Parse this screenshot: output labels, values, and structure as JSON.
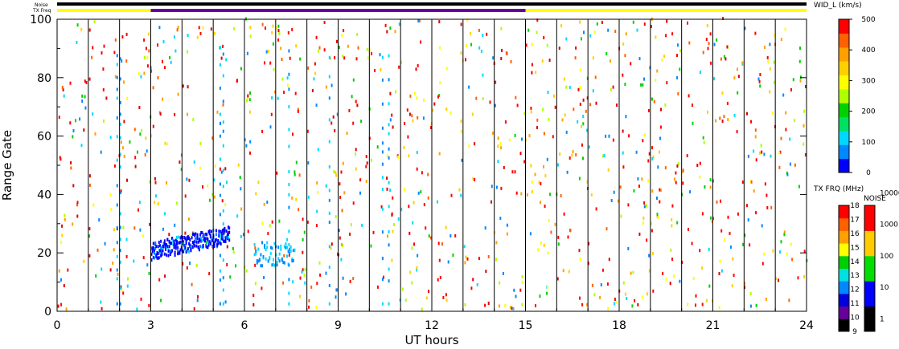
{
  "chart_data": {
    "type": "heatmap",
    "xlabel": "UT hours",
    "ylabel": "Range Gate",
    "xlim": [
      0,
      24
    ],
    "ylim": [
      0,
      100
    ],
    "x_ticks": [
      "0",
      "3",
      "6",
      "9",
      "12",
      "15",
      "18",
      "21",
      "24"
    ],
    "y_ticks": [
      "0",
      "20",
      "40",
      "60",
      "80",
      "100"
    ],
    "scan_boundaries_ut": [
      1,
      2,
      3,
      4,
      5,
      6,
      7,
      8,
      9,
      10,
      11,
      12,
      13,
      14,
      15,
      16,
      17,
      18,
      19,
      20,
      21,
      22,
      23
    ],
    "top_bars": {
      "noise_label": "Noise",
      "txfreq_label": "TX Freq",
      "txfreq_segments": [
        {
          "start": 0,
          "end": 3,
          "color": "#ffff00"
        },
        {
          "start": 3,
          "end": 15,
          "color": "#660099"
        },
        {
          "start": 15,
          "end": 24,
          "color": "#ffff00"
        }
      ]
    },
    "colorbar_width": {
      "title": "WID_L (km/s)",
      "ticks": [
        "0",
        "100",
        "200",
        "300",
        "400",
        "500"
      ],
      "range": [
        0,
        500
      ],
      "colors": [
        "#0000ff",
        "#0088ff",
        "#00d8ff",
        "#00e060",
        "#00d000",
        "#b0ff00",
        "#ffff00",
        "#ffd000",
        "#ffa000",
        "#ff6000",
        "#ff0000"
      ]
    },
    "colorbar_txfreq": {
      "title": "TX FRQ (MHz)",
      "ticks": [
        "9",
        "10",
        "11",
        "12",
        "13",
        "14",
        "15",
        "16",
        "17",
        "18"
      ],
      "colors": [
        "#000000",
        "#660099",
        "#0000dd",
        "#0088ff",
        "#00e0e0",
        "#00d000",
        "#ffff00",
        "#ffa000",
        "#ff6000",
        "#ff0000"
      ]
    },
    "colorbar_noise": {
      "title": "NOISE",
      "ticks": [
        "1",
        "10",
        "100",
        "1000",
        "10000"
      ],
      "colors": [
        "#000000",
        "#0000ff",
        "#00dd00",
        "#ffcc00",
        "#ff0000"
      ]
    },
    "dense_band": {
      "description_ut_range": [
        3.0,
        5.5
      ],
      "gate_range": [
        16,
        27
      ],
      "dominant_width_kms": 50
    }
  }
}
